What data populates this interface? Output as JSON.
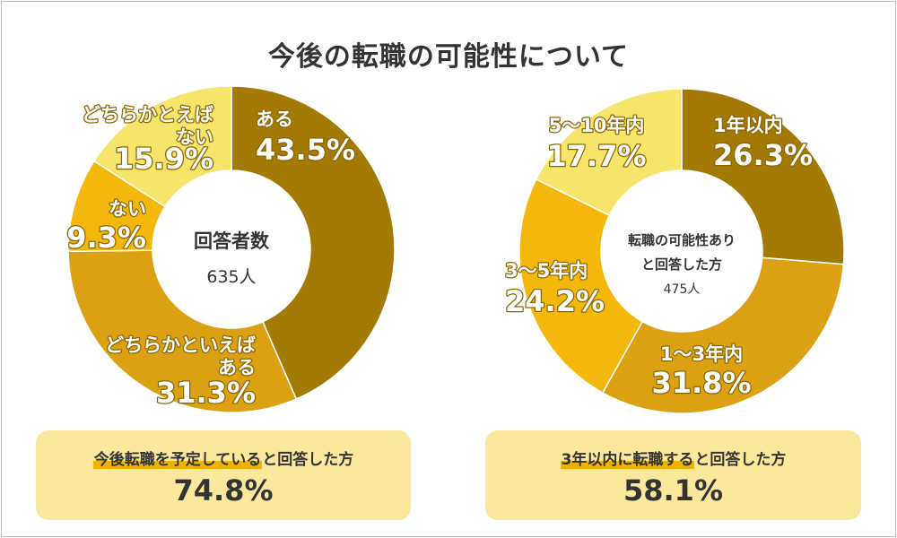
{
  "title": "今後の転職の可能性について",
  "colors": {
    "dark": "#a37a06",
    "mid": "#dca113",
    "gold": "#f4b80c",
    "light": "#f7e46a",
    "text": "#333333",
    "box_bg": "#fbe89c",
    "highlight": "#f0b400"
  },
  "chart_data": [
    {
      "type": "pie",
      "donut": true,
      "center_label": "回答者数",
      "center_value": "635人",
      "slices": [
        {
          "label": "ある",
          "value": 43.5,
          "value_text": "43.5%",
          "color": "dark"
        },
        {
          "label": "どちらかといえば ある",
          "value": 31.3,
          "value_text": "31.3%",
          "color": "mid"
        },
        {
          "label": "ない",
          "value": 9.3,
          "value_text": "9.3%",
          "color": "gold"
        },
        {
          "label": "どちらかとえば ない",
          "value": 15.9,
          "value_text": "15.9%",
          "color": "light"
        }
      ]
    },
    {
      "type": "pie",
      "donut": true,
      "center_label": "転職の可能性あり と回答した方",
      "center_value": "475人",
      "slices": [
        {
          "label": "1年以内",
          "value": 26.3,
          "value_text": "26.3%",
          "color": "dark"
        },
        {
          "label": "1〜3年内",
          "value": 31.8,
          "value_text": "31.8%",
          "color": "mid"
        },
        {
          "label": "3〜5年内",
          "value": 24.2,
          "value_text": "24.2%",
          "color": "gold"
        },
        {
          "label": "5〜10年内",
          "value": 17.7,
          "value_text": "17.7%",
          "color": "light"
        }
      ]
    }
  ],
  "summary": [
    {
      "caption_highlight": "今後転職を予定している",
      "caption_rest": "と回答した方",
      "value": "74.8%"
    },
    {
      "caption_highlight": "3年以内に転職する",
      "caption_rest": "と回答した方",
      "value": "58.1%"
    }
  ]
}
